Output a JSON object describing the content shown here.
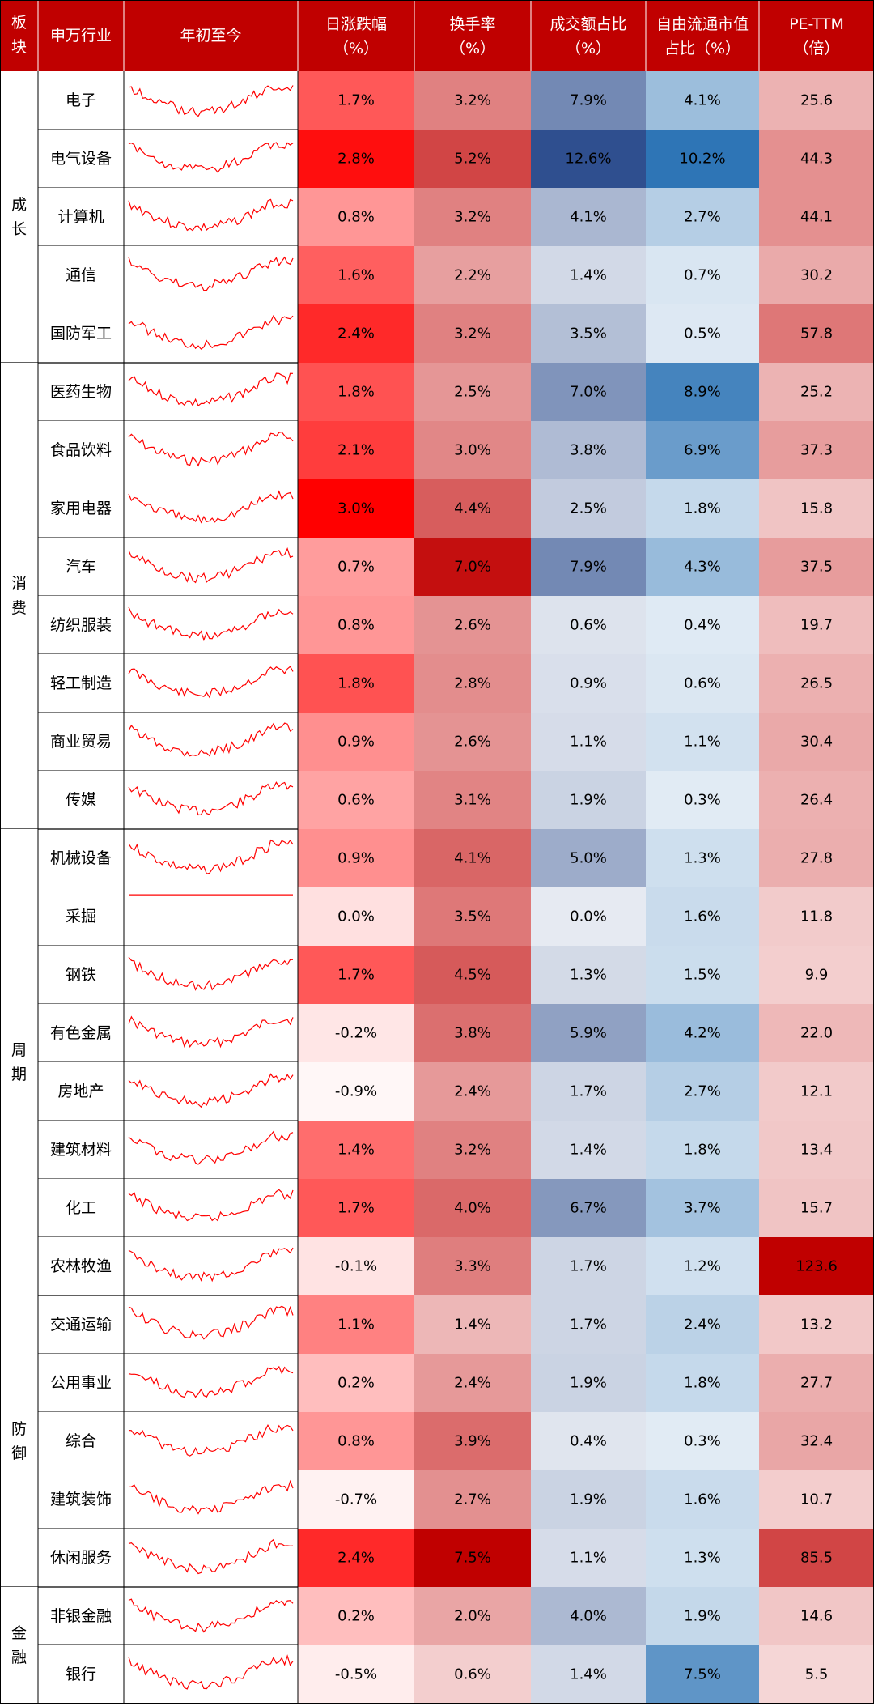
{
  "chart_data": {
    "type": "table",
    "header_bg": "#C00000",
    "header": {
      "group": "板块",
      "industry": "申万行业",
      "trend": "年初至今",
      "metrics": [
        {
          "line1": "日涨跌幅",
          "line2": "（%）"
        },
        {
          "line1": "换手率",
          "line2": "（%）"
        },
        {
          "line1": "成交额占比",
          "line2": "（%）"
        },
        {
          "line1": "自由流通市值",
          "line2": "占比（%）"
        },
        {
          "line1": "PE-TTM",
          "line2": "（倍）"
        }
      ]
    },
    "metric_keys": [
      "change",
      "turnover",
      "volume_share",
      "float_cap_share",
      "pe_ttm"
    ],
    "metric_colors": [
      "#FF0000",
      "#C00000",
      "#2F4F8F",
      "#2E75B6",
      "#C00000"
    ],
    "metric_max": [
      3.0,
      7.5,
      12.6,
      10.2,
      123.6
    ],
    "groups": [
      {
        "name": "成长",
        "chars": [
          "成",
          "长"
        ],
        "rows": 5
      },
      {
        "name": "消费",
        "chars": [
          "消",
          "费"
        ],
        "rows": 8
      },
      {
        "name": "周期",
        "chars": [
          "周",
          "期"
        ],
        "rows": 8
      },
      {
        "name": "防御",
        "chars": [
          "防",
          "御"
        ],
        "rows": 5
      },
      {
        "name": "金融",
        "chars": [
          "金",
          "融"
        ],
        "rows": 2
      }
    ],
    "rows": [
      {
        "industry": "电子",
        "change": "1.7%",
        "turnover": "3.2%",
        "volume_share": "7.9%",
        "float_cap_share": "4.1%",
        "pe_ttm": "25.6"
      },
      {
        "industry": "电气设备",
        "change": "2.8%",
        "turnover": "5.2%",
        "volume_share": "12.6%",
        "float_cap_share": "10.2%",
        "pe_ttm": "44.3"
      },
      {
        "industry": "计算机",
        "change": "0.8%",
        "turnover": "3.2%",
        "volume_share": "4.1%",
        "float_cap_share": "2.7%",
        "pe_ttm": "44.1"
      },
      {
        "industry": "通信",
        "change": "1.6%",
        "turnover": "2.2%",
        "volume_share": "1.4%",
        "float_cap_share": "0.7%",
        "pe_ttm": "30.2"
      },
      {
        "industry": "国防军工",
        "change": "2.4%",
        "turnover": "3.2%",
        "volume_share": "3.5%",
        "float_cap_share": "0.5%",
        "pe_ttm": "57.8"
      },
      {
        "industry": "医药生物",
        "change": "1.8%",
        "turnover": "2.5%",
        "volume_share": "7.0%",
        "float_cap_share": "8.9%",
        "pe_ttm": "25.2"
      },
      {
        "industry": "食品饮料",
        "change": "2.1%",
        "turnover": "3.0%",
        "volume_share": "3.8%",
        "float_cap_share": "6.9%",
        "pe_ttm": "37.3"
      },
      {
        "industry": "家用电器",
        "change": "3.0%",
        "turnover": "4.4%",
        "volume_share": "2.5%",
        "float_cap_share": "1.8%",
        "pe_ttm": "15.8"
      },
      {
        "industry": "汽车",
        "change": "0.7%",
        "turnover": "7.0%",
        "volume_share": "7.9%",
        "float_cap_share": "4.3%",
        "pe_ttm": "37.5"
      },
      {
        "industry": "纺织服装",
        "change": "0.8%",
        "turnover": "2.6%",
        "volume_share": "0.6%",
        "float_cap_share": "0.4%",
        "pe_ttm": "19.7"
      },
      {
        "industry": "轻工制造",
        "change": "1.8%",
        "turnover": "2.8%",
        "volume_share": "0.9%",
        "float_cap_share": "0.6%",
        "pe_ttm": "26.5"
      },
      {
        "industry": "商业贸易",
        "change": "0.9%",
        "turnover": "2.6%",
        "volume_share": "1.1%",
        "float_cap_share": "1.1%",
        "pe_ttm": "30.4"
      },
      {
        "industry": "传媒",
        "change": "0.6%",
        "turnover": "3.1%",
        "volume_share": "1.9%",
        "float_cap_share": "0.3%",
        "pe_ttm": "26.4"
      },
      {
        "industry": "机械设备",
        "change": "0.9%",
        "turnover": "4.1%",
        "volume_share": "5.0%",
        "float_cap_share": "1.3%",
        "pe_ttm": "27.8"
      },
      {
        "industry": "采掘",
        "change": "0.0%",
        "turnover": "3.5%",
        "volume_share": "0.0%",
        "float_cap_share": "1.6%",
        "pe_ttm": "11.8"
      },
      {
        "industry": "钢铁",
        "change": "1.7%",
        "turnover": "4.5%",
        "volume_share": "1.3%",
        "float_cap_share": "1.5%",
        "pe_ttm": "9.9"
      },
      {
        "industry": "有色金属",
        "change": "-0.2%",
        "turnover": "3.8%",
        "volume_share": "5.9%",
        "float_cap_share": "4.2%",
        "pe_ttm": "22.0"
      },
      {
        "industry": "房地产",
        "change": "-0.9%",
        "turnover": "2.4%",
        "volume_share": "1.7%",
        "float_cap_share": "2.7%",
        "pe_ttm": "12.1"
      },
      {
        "industry": "建筑材料",
        "change": "1.4%",
        "turnover": "3.2%",
        "volume_share": "1.4%",
        "float_cap_share": "1.8%",
        "pe_ttm": "13.4"
      },
      {
        "industry": "化工",
        "change": "1.7%",
        "turnover": "4.0%",
        "volume_share": "6.7%",
        "float_cap_share": "3.7%",
        "pe_ttm": "15.7"
      },
      {
        "industry": "农林牧渔",
        "change": "-0.1%",
        "turnover": "3.3%",
        "volume_share": "1.7%",
        "float_cap_share": "1.2%",
        "pe_ttm": "123.6"
      },
      {
        "industry": "交通运输",
        "change": "1.1%",
        "turnover": "1.4%",
        "volume_share": "1.7%",
        "float_cap_share": "2.4%",
        "pe_ttm": "13.2"
      },
      {
        "industry": "公用事业",
        "change": "0.2%",
        "turnover": "2.4%",
        "volume_share": "1.9%",
        "float_cap_share": "1.8%",
        "pe_ttm": "27.7"
      },
      {
        "industry": "综合",
        "change": "0.8%",
        "turnover": "3.9%",
        "volume_share": "0.4%",
        "float_cap_share": "0.3%",
        "pe_ttm": "32.4"
      },
      {
        "industry": "建筑装饰",
        "change": "-0.7%",
        "turnover": "2.7%",
        "volume_share": "1.9%",
        "float_cap_share": "1.6%",
        "pe_ttm": "10.7"
      },
      {
        "industry": "休闲服务",
        "change": "2.4%",
        "turnover": "7.5%",
        "volume_share": "1.1%",
        "float_cap_share": "1.3%",
        "pe_ttm": "85.5"
      },
      {
        "industry": "非银金融",
        "change": "0.2%",
        "turnover": "2.0%",
        "volume_share": "4.0%",
        "float_cap_share": "1.9%",
        "pe_ttm": "14.6"
      },
      {
        "industry": "银行",
        "change": "-0.5%",
        "turnover": "0.6%",
        "volume_share": "1.4%",
        "float_cap_share": "7.5%",
        "pe_ttm": "5.5"
      }
    ],
    "sparkline_color": "#FF0000"
  }
}
